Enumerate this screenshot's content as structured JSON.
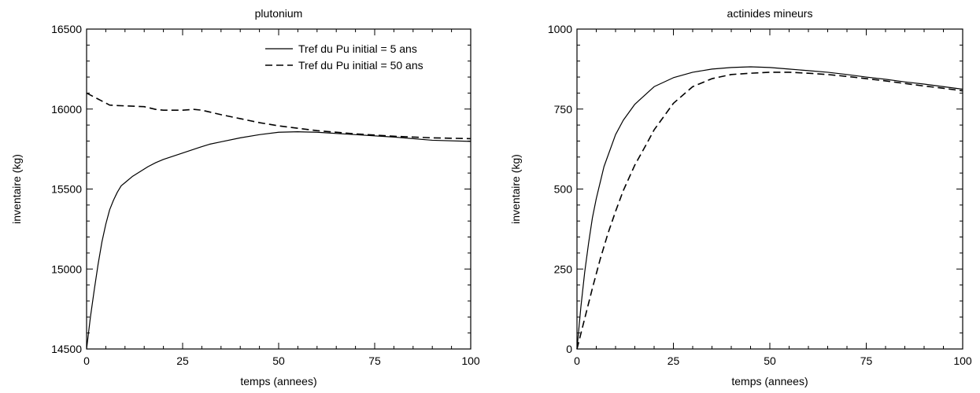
{
  "chart_data": [
    {
      "type": "line",
      "title": "plutonium",
      "xlabel": "temps (annees)",
      "ylabel": "inventaire (kg)",
      "xlim": [
        0,
        100
      ],
      "ylim": [
        14500,
        16500
      ],
      "xticks": [
        0,
        25,
        50,
        75,
        100
      ],
      "yticks": [
        14500,
        15000,
        15500,
        16000,
        16500
      ],
      "grid": false,
      "legend_position": "top-right",
      "series": [
        {
          "name": "Tref du Pu initial = 5 ans",
          "style": "solid",
          "x": [
            0,
            1,
            2,
            3,
            4,
            5,
            6,
            7,
            8,
            9,
            10,
            12,
            14,
            16,
            18,
            20,
            25,
            30,
            32,
            35,
            40,
            45,
            50,
            55,
            60,
            70,
            80,
            90,
            100
          ],
          "y": [
            14500,
            14700,
            14870,
            15030,
            15170,
            15280,
            15370,
            15430,
            15480,
            15520,
            15540,
            15580,
            15610,
            15640,
            15665,
            15685,
            15725,
            15765,
            15780,
            15795,
            15820,
            15840,
            15855,
            15858,
            15855,
            15840,
            15825,
            15805,
            15798
          ]
        },
        {
          "name": "Tref du Pu initial = 50 ans",
          "style": "dashed",
          "x": [
            0,
            2,
            4,
            6,
            8,
            10,
            15,
            18,
            20,
            25,
            28,
            30,
            35,
            40,
            45,
            50,
            55,
            60,
            70,
            80,
            90,
            100
          ],
          "y": [
            16100,
            16075,
            16050,
            16025,
            16022,
            16020,
            16015,
            15998,
            15993,
            15993,
            15998,
            15993,
            15965,
            15940,
            15915,
            15895,
            15880,
            15865,
            15845,
            15830,
            15820,
            15815
          ]
        }
      ]
    },
    {
      "type": "line",
      "title": "actinides mineurs",
      "xlabel": "temps (annees)",
      "ylabel": "inventaire (kg)",
      "xlim": [
        0,
        100
      ],
      "ylim": [
        0,
        1000
      ],
      "xticks": [
        0,
        25,
        50,
        75,
        100
      ],
      "yticks": [
        0,
        250,
        500,
        750,
        1000
      ],
      "grid": false,
      "series": [
        {
          "style": "solid",
          "x": [
            0,
            1,
            2,
            3,
            4,
            5,
            7,
            10,
            12,
            15,
            20,
            25,
            30,
            35,
            40,
            45,
            50,
            55,
            60,
            65,
            70,
            75,
            80,
            85,
            90,
            95,
            100
          ],
          "y": [
            0,
            130,
            240,
            330,
            410,
            470,
            570,
            670,
            715,
            765,
            820,
            848,
            865,
            875,
            880,
            882,
            880,
            875,
            870,
            865,
            858,
            850,
            843,
            835,
            828,
            820,
            812
          ]
        },
        {
          "style": "dashed",
          "x": [
            0,
            2,
            4,
            6,
            8,
            10,
            12,
            15,
            18,
            20,
            25,
            30,
            35,
            40,
            45,
            50,
            55,
            60,
            65,
            70,
            75,
            80,
            85,
            90,
            95,
            100
          ],
          "y": [
            0,
            95,
            190,
            280,
            360,
            430,
            495,
            575,
            640,
            685,
            768,
            820,
            845,
            858,
            862,
            865,
            865,
            862,
            858,
            852,
            845,
            838,
            830,
            822,
            815,
            807
          ]
        }
      ]
    }
  ]
}
